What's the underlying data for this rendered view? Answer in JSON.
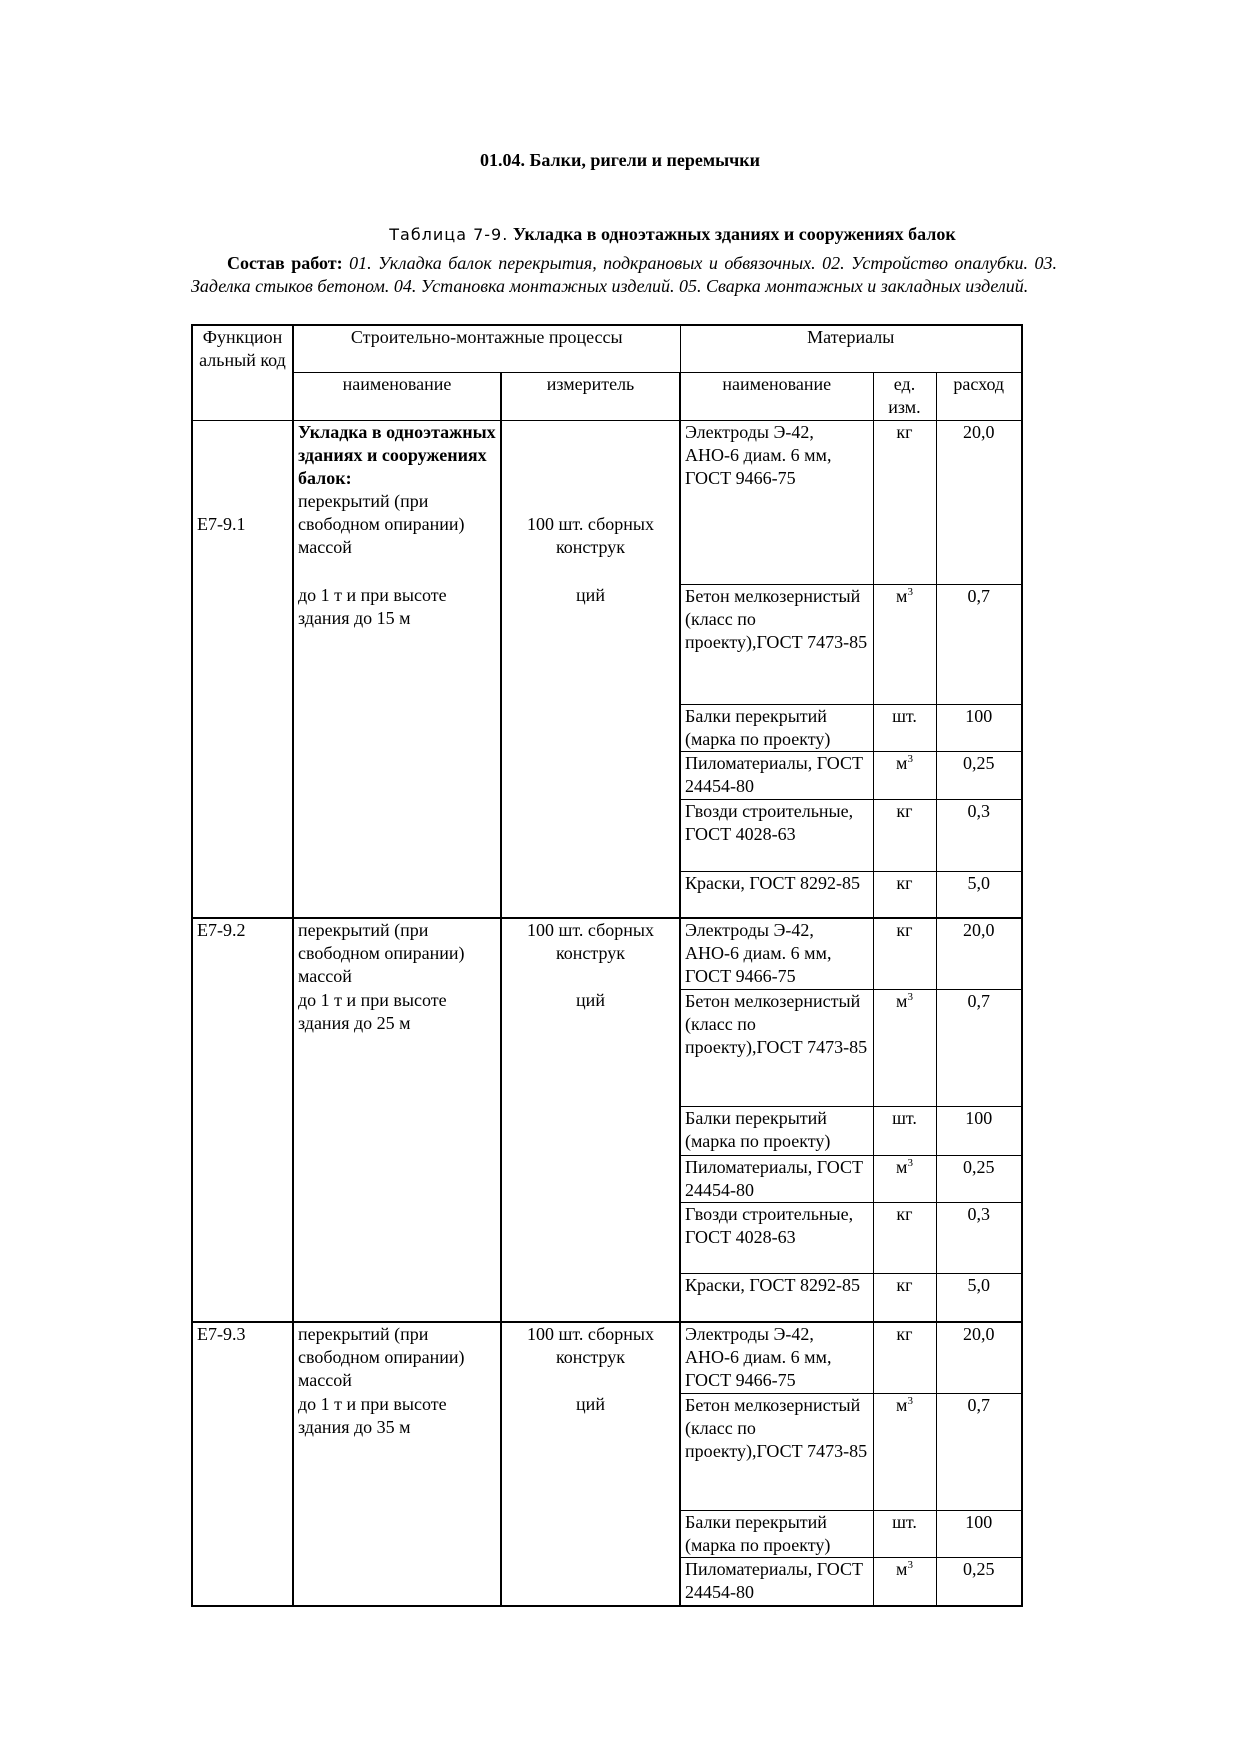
{
  "section_title": "01.04. Балки, ригели и перемычки",
  "table_label": "Таблица 7-9.",
  "table_title": "Укладка в одноэтажных зданиях и сооружениях балок",
  "composition": {
    "label": "Состав работ:",
    "text": "01. Укладка балок перекрытия, подкрановых и обвязочных. 02. Устройство опалубки. 03. Заделка стыков бетоном. 04. Установка монтажных изделий. 05. Сварка монтажных и закладных изделий."
  },
  "headers": {
    "code": "Функцион альный код",
    "processes": "Строительно-монтажные процессы",
    "materials": "Материалы",
    "proc_name": "наименование",
    "proc_measure": "измеритель",
    "mat_name": "наименование",
    "mat_unit": "ед. изм.",
    "mat_qty": "расход"
  },
  "groups": [
    {
      "code": "Е7-9.1",
      "heading": "Укладка  в одноэтажных зданиях и сооружениях балок:",
      "name_part1": "перекрытий (при свободном опирании) массой",
      "name_part2": "до 1 т и при высоте здания до 15 м",
      "measure_part1": "100 шт. сборных конструк",
      "measure_part2": "ций",
      "materials": [
        {
          "name": "Электроды Э-42, АНО-6 диам. 6 мм, ГОСТ 9466-75",
          "unit": "кг",
          "exp": "",
          "qty": "20,0"
        },
        {
          "name": "Бетон мелкозернистый (класс по проекту),ГОСТ 7473-85",
          "unit": "м",
          "exp": "3",
          "qty": "0,7"
        },
        {
          "name": "Балки перекрытий (марка по проекту)",
          "unit": "шт.",
          "exp": "",
          "qty": "100"
        },
        {
          "name": "Пиломатериалы, ГОСТ 24454-80",
          "unit": "м",
          "exp": "3",
          "qty": "0,25"
        },
        {
          "name": "Гвозди строительные, ГОСТ 4028-63",
          "unit": "кг",
          "exp": "",
          "qty": "0,3"
        },
        {
          "name": "Краски, ГОСТ 8292-85",
          "unit": "кг",
          "exp": "",
          "qty": "5,0"
        }
      ]
    },
    {
      "code": "Е7-9.2",
      "heading": "",
      "name_part1": "перекрытий (при свободном опирании) массой",
      "name_part2": "до 1 т и при высоте здания до 25 м",
      "measure_part1": "100 шт. сборных конструк",
      "measure_part2": "ций",
      "materials": [
        {
          "name": "Электроды Э-42, АНО-6 диам. 6 мм, ГОСТ 9466-75",
          "unit": "кг",
          "exp": "",
          "qty": "20,0"
        },
        {
          "name": "Бетон мелкозернистый (класс по проекту),ГОСТ 7473-85",
          "unit": "м",
          "exp": "3",
          "qty": "0,7"
        },
        {
          "name": "Балки перекрытий (марка по проекту)",
          "unit": "шт.",
          "exp": "",
          "qty": "100"
        },
        {
          "name": "Пиломатериалы, ГОСТ 24454-80",
          "unit": "м",
          "exp": "3",
          "qty": "0,25"
        },
        {
          "name": "Гвозди строительные, ГОСТ 4028-63",
          "unit": "кг",
          "exp": "",
          "qty": "0,3"
        },
        {
          "name": "Краски, ГОСТ 8292-85",
          "unit": "кг",
          "exp": "",
          "qty": "5,0"
        }
      ]
    },
    {
      "code": "Е7-9.3",
      "heading": "",
      "name_part1": "перекрытий (при свободном опирании) массой",
      "name_part2": "до 1 т и при высоте здания до 35 м",
      "measure_part1": "100 шт. сборных конструк",
      "measure_part2": "ций",
      "materials": [
        {
          "name": "Электроды Э-42, АНО-6 диам. 6 мм, ГОСТ 9466-75",
          "unit": "кг",
          "exp": "",
          "qty": "20,0"
        },
        {
          "name": "Бетон мелкозернистый (класс по проекту),ГОСТ 7473-85",
          "unit": "м",
          "exp": "3",
          "qty": "0,7"
        },
        {
          "name": "Балки перекрытий (марка по проекту)",
          "unit": "шт.",
          "exp": "",
          "qty": "100"
        },
        {
          "name": "Пиломатериалы, ГОСТ 24454-80",
          "unit": "м",
          "exp": "3",
          "qty": "0,25"
        }
      ]
    }
  ]
}
